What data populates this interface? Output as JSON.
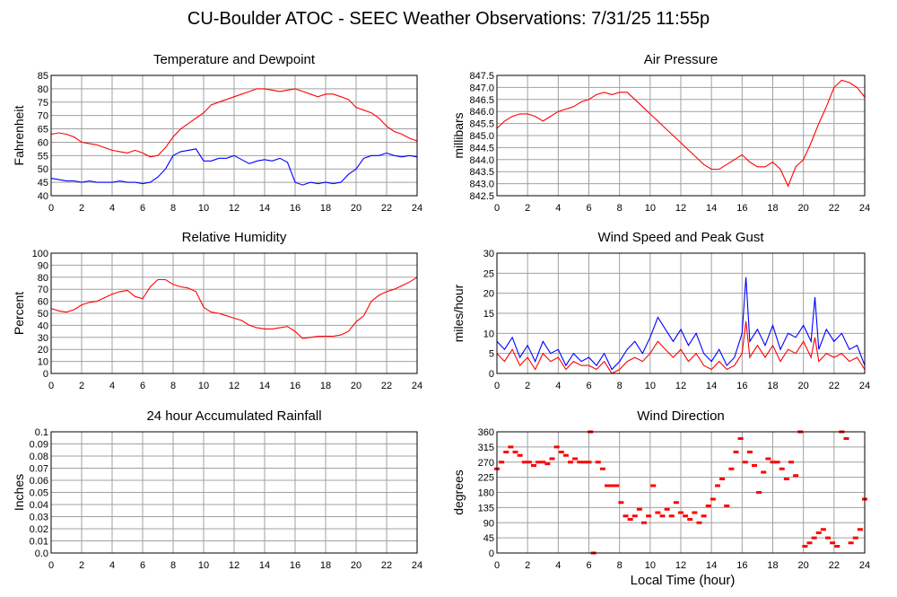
{
  "page_title": "CU-Boulder ATOC - SEEC Weather Observations: 7/31/25 11:55p",
  "footer_xlabel": "Local Time (hour)",
  "colors": {
    "red": "#ff0000",
    "blue": "#0000ff",
    "grid": "#a0a0a0",
    "frame": "#000000"
  },
  "chart_data": [
    {
      "type": "line",
      "title": "Temperature and Dewpoint",
      "ylabel": "Fahrenheit",
      "xlabel": "",
      "xlim": [
        0,
        24
      ],
      "ylim": [
        40,
        85
      ],
      "xticks": [
        0,
        2,
        4,
        6,
        8,
        10,
        12,
        14,
        16,
        18,
        20,
        22,
        24
      ],
      "yticks": [
        40,
        45,
        50,
        55,
        60,
        65,
        70,
        75,
        80,
        85
      ],
      "ytick_labels": [
        "40",
        "45",
        "50",
        "55",
        "60",
        "65",
        "70",
        "75",
        "80",
        "85"
      ],
      "grid": true,
      "series": [
        {
          "color": "#ff0000",
          "x": [
            0,
            0.5,
            1,
            1.5,
            2,
            2.5,
            3,
            3.5,
            4,
            4.5,
            5,
            5.5,
            6,
            6.5,
            7,
            7.5,
            8,
            8.5,
            9,
            9.5,
            10,
            10.5,
            11,
            11.5,
            12,
            12.5,
            13,
            13.5,
            14,
            14.5,
            15,
            15.5,
            16,
            16.5,
            17,
            17.5,
            18,
            18.5,
            19,
            19.5,
            20,
            20.5,
            21,
            21.5,
            22,
            22.5,
            23,
            23.5,
            24
          ],
          "y": [
            63,
            63.5,
            63,
            62,
            60,
            59.5,
            59,
            58,
            57,
            56.5,
            56,
            57,
            56,
            54.5,
            55,
            58,
            62,
            65,
            67,
            69,
            71,
            74,
            75,
            76,
            77,
            78,
            79,
            80,
            80,
            79.5,
            79,
            79.5,
            80,
            79,
            78,
            77,
            78,
            78,
            77,
            76,
            73,
            72,
            71,
            69,
            66,
            64,
            63,
            61.5,
            60.5
          ]
        },
        {
          "color": "#0000ff",
          "x": [
            0,
            0.5,
            1,
            1.5,
            2,
            2.5,
            3,
            3.5,
            4,
            4.5,
            5,
            5.5,
            6,
            6.5,
            7,
            7.5,
            8,
            8.5,
            9,
            9.5,
            10,
            10.5,
            11,
            11.5,
            12,
            12.5,
            13,
            13.5,
            14,
            14.5,
            15,
            15.5,
            16,
            16.5,
            17,
            17.5,
            18,
            18.5,
            19,
            19.5,
            20,
            20.5,
            21,
            21.5,
            22,
            22.5,
            23,
            23.5,
            24
          ],
          "y": [
            46.5,
            46,
            45.5,
            45.5,
            45,
            45.5,
            45,
            45,
            45,
            45.5,
            45,
            45,
            44.5,
            45,
            47,
            50,
            55,
            56.5,
            57,
            57.5,
            53,
            53,
            54,
            54,
            55,
            53.5,
            52,
            53,
            53.5,
            53,
            54,
            52.5,
            45,
            44,
            45,
            44.5,
            45,
            44.5,
            45,
            48,
            50,
            54,
            55,
            55,
            56,
            55,
            54.5,
            55,
            54.5
          ]
        }
      ]
    },
    {
      "type": "line",
      "title": "Air Pressure",
      "ylabel": "millibars",
      "xlabel": "",
      "xlim": [
        0,
        24
      ],
      "ylim": [
        842.5,
        847.5
      ],
      "xticks": [
        0,
        2,
        4,
        6,
        8,
        10,
        12,
        14,
        16,
        18,
        20,
        22,
        24
      ],
      "yticks": [
        842.5,
        843,
        843.5,
        844,
        844.5,
        845,
        845.5,
        846,
        846.5,
        847,
        847.5
      ],
      "ytick_labels": [
        "842.5",
        "843.0",
        "843.5",
        "844.0",
        "844.5",
        "845.0",
        "845.5",
        "846.0",
        "846.5",
        "847.0",
        "847.5"
      ],
      "grid": true,
      "series": [
        {
          "color": "#ff0000",
          "x": [
            0,
            0.5,
            1,
            1.5,
            2,
            2.5,
            3,
            3.5,
            4,
            4.5,
            5,
            5.5,
            6,
            6.5,
            7,
            7.5,
            8,
            8.5,
            9,
            9.5,
            10,
            10.5,
            11,
            11.5,
            12,
            12.5,
            13,
            13.5,
            14,
            14.5,
            15,
            15.5,
            16,
            16.5,
            17,
            17.5,
            18,
            18.5,
            19,
            19.5,
            20,
            20.5,
            21,
            21.5,
            22,
            22.5,
            23,
            23.5,
            24
          ],
          "y": [
            845.3,
            845.6,
            845.8,
            845.9,
            845.9,
            845.8,
            845.6,
            845.8,
            846,
            846.1,
            846.2,
            846.4,
            846.5,
            846.7,
            846.8,
            846.7,
            846.8,
            846.8,
            846.5,
            846.2,
            845.9,
            845.6,
            845.3,
            845,
            844.7,
            844.4,
            844.1,
            843.8,
            843.6,
            843.6,
            843.8,
            844,
            844.2,
            843.9,
            843.7,
            843.7,
            843.9,
            843.6,
            842.9,
            843.7,
            844,
            844.7,
            845.5,
            846.2,
            847,
            847.3,
            847.2,
            847,
            846.6
          ]
        }
      ]
    },
    {
      "type": "line",
      "title": "Relative Humidity",
      "ylabel": "Percent",
      "xlabel": "",
      "xlim": [
        0,
        24
      ],
      "ylim": [
        0,
        100
      ],
      "xticks": [
        0,
        2,
        4,
        6,
        8,
        10,
        12,
        14,
        16,
        18,
        20,
        22,
        24
      ],
      "yticks": [
        0,
        10,
        20,
        30,
        40,
        50,
        60,
        70,
        80,
        90,
        100
      ],
      "ytick_labels": [
        "0",
        "10",
        "20",
        "30",
        "40",
        "50",
        "60",
        "70",
        "80",
        "90",
        "100"
      ],
      "grid": true,
      "series": [
        {
          "color": "#ff0000",
          "x": [
            0,
            0.5,
            1,
            1.5,
            2,
            2.5,
            3,
            3.5,
            4,
            4.5,
            5,
            5.5,
            6,
            6.5,
            7,
            7.5,
            8,
            8.5,
            9,
            9.5,
            10,
            10.5,
            11,
            11.5,
            12,
            12.5,
            13,
            13.5,
            14,
            14.5,
            15,
            15.5,
            16,
            16.5,
            17,
            17.5,
            18,
            18.5,
            19,
            19.5,
            20,
            20.5,
            21,
            21.5,
            22,
            22.5,
            23,
            23.5,
            24
          ],
          "y": [
            54,
            52,
            51,
            53,
            57,
            59,
            60,
            63,
            66,
            68,
            69,
            64,
            62,
            72,
            78,
            78,
            74,
            72,
            71,
            68,
            55,
            51,
            50,
            48,
            46,
            44,
            40,
            38,
            37,
            37,
            38,
            39,
            35,
            29,
            30,
            31,
            31,
            31,
            32,
            35,
            43,
            48,
            60,
            65,
            68,
            70,
            73,
            76,
            80
          ]
        }
      ]
    },
    {
      "type": "line",
      "title": "Wind Speed and Peak Gust",
      "ylabel": "miles/hour",
      "xlabel": "",
      "xlim": [
        0,
        24
      ],
      "ylim": [
        0,
        30
      ],
      "xticks": [
        0,
        2,
        4,
        6,
        8,
        10,
        12,
        14,
        16,
        18,
        20,
        22,
        24
      ],
      "yticks": [
        0,
        5,
        10,
        15,
        20,
        25,
        30
      ],
      "ytick_labels": [
        "0",
        "5",
        "10",
        "15",
        "20",
        "25",
        "30"
      ],
      "grid": true,
      "series": [
        {
          "color": "#0000ff",
          "x": [
            0,
            0.5,
            1,
            1.5,
            2,
            2.5,
            3,
            3.5,
            4,
            4.5,
            5,
            5.5,
            6,
            6.5,
            7,
            7.5,
            8,
            8.5,
            9,
            9.5,
            10,
            10.5,
            11,
            11.5,
            12,
            12.5,
            13,
            13.5,
            14,
            14.5,
            15,
            15.5,
            16,
            16.25,
            16.5,
            17,
            17.5,
            18,
            18.5,
            19,
            19.5,
            20,
            20.5,
            20.75,
            21,
            21.5,
            22,
            22.5,
            23,
            23.5,
            24
          ],
          "y": [
            8,
            6,
            9,
            4,
            7,
            3,
            8,
            5,
            6,
            2,
            5,
            3,
            4,
            2,
            5,
            1,
            3,
            6,
            8,
            5,
            9,
            14,
            11,
            8,
            11,
            7,
            10,
            5,
            3,
            6,
            2,
            4,
            10,
            24,
            8,
            11,
            7,
            12,
            6,
            10,
            9,
            12,
            8,
            19,
            6,
            11,
            8,
            10,
            6,
            7,
            2
          ]
        },
        {
          "color": "#ff0000",
          "x": [
            0,
            0.5,
            1,
            1.5,
            2,
            2.5,
            3,
            3.5,
            4,
            4.5,
            5,
            5.5,
            6,
            6.5,
            7,
            7.5,
            8,
            8.5,
            9,
            9.5,
            10,
            10.5,
            11,
            11.5,
            12,
            12.5,
            13,
            13.5,
            14,
            14.5,
            15,
            15.5,
            16,
            16.25,
            16.5,
            17,
            17.5,
            18,
            18.5,
            19,
            19.5,
            20,
            20.5,
            20.75,
            21,
            21.5,
            22,
            22.5,
            23,
            23.5,
            24
          ],
          "y": [
            5,
            3,
            6,
            2,
            4,
            1,
            5,
            3,
            4,
            1,
            3,
            2,
            2,
            1,
            3,
            0,
            1,
            3,
            4,
            3,
            5,
            8,
            6,
            4,
            6,
            3,
            5,
            2,
            1,
            3,
            1,
            2,
            5,
            13,
            4,
            7,
            4,
            7,
            3,
            6,
            5,
            8,
            4,
            9,
            3,
            5,
            4,
            5,
            3,
            4,
            1
          ]
        }
      ]
    },
    {
      "type": "line",
      "title": "24 hour Accumulated Rainfall",
      "ylabel": "Inches",
      "xlabel": "",
      "xlim": [
        0,
        24
      ],
      "ylim": [
        0,
        0.1
      ],
      "xticks": [
        0,
        2,
        4,
        6,
        8,
        10,
        12,
        14,
        16,
        18,
        20,
        22,
        24
      ],
      "yticks": [
        0,
        0.01,
        0.02,
        0.03,
        0.04,
        0.05,
        0.06,
        0.07,
        0.08,
        0.09,
        0.1
      ],
      "ytick_labels": [
        "0.0",
        "0.01",
        "0.02",
        "0.03",
        "0.04",
        "0.05",
        "0.06",
        "0.07",
        "0.08",
        "0.09",
        "0.1"
      ],
      "grid": true,
      "series": [
        {
          "color": "#ff0000",
          "x": [
            0,
            24
          ],
          "y": [
            0,
            0
          ]
        }
      ]
    },
    {
      "type": "scatter",
      "title": "Wind Direction",
      "ylabel": "degrees",
      "xlabel": "Local Time (hour)",
      "xlim": [
        0,
        24
      ],
      "ylim": [
        0,
        360
      ],
      "xticks": [
        0,
        2,
        4,
        6,
        8,
        10,
        12,
        14,
        16,
        18,
        20,
        22,
        24
      ],
      "yticks": [
        0,
        45,
        90,
        135,
        180,
        225,
        270,
        315,
        360
      ],
      "ytick_labels": [
        "0",
        "45",
        "90",
        "135",
        "180",
        "225",
        "270",
        "315",
        "360"
      ],
      "grid": true,
      "series": [
        {
          "color": "#ff0000",
          "x": [
            0,
            0.3,
            0.6,
            0.9,
            1.2,
            1.5,
            1.8,
            2.1,
            2.4,
            2.7,
            3.0,
            3.3,
            3.6,
            3.9,
            4.2,
            4.5,
            4.8,
            5.1,
            5.4,
            5.7,
            6.0,
            6.1,
            6.3,
            6.6,
            6.9,
            7.2,
            7.5,
            7.8,
            8.1,
            8.4,
            8.7,
            9.0,
            9.3,
            9.6,
            9.9,
            10.2,
            10.5,
            10.8,
            11.1,
            11.4,
            11.7,
            12.0,
            12.3,
            12.6,
            12.9,
            13.2,
            13.5,
            13.8,
            14.1,
            14.4,
            14.7,
            15.0,
            15.3,
            15.6,
            15.9,
            16.2,
            16.5,
            16.8,
            17.1,
            17.4,
            17.7,
            18.0,
            18.3,
            18.6,
            18.9,
            19.2,
            19.5,
            19.8,
            20.1,
            20.4,
            20.7,
            21.0,
            21.3,
            21.6,
            21.9,
            22.2,
            22.5,
            22.8,
            23.1,
            23.4,
            23.7,
            24.0
          ],
          "y": [
            250,
            270,
            300,
            315,
            300,
            290,
            270,
            270,
            260,
            270,
            270,
            265,
            280,
            315,
            300,
            290,
            270,
            280,
            270,
            270,
            270,
            360,
            0,
            270,
            250,
            200,
            200,
            200,
            150,
            110,
            100,
            110,
            130,
            90,
            110,
            200,
            120,
            110,
            130,
            110,
            150,
            120,
            110,
            100,
            120,
            90,
            110,
            140,
            160,
            200,
            220,
            140,
            250,
            300,
            340,
            270,
            300,
            260,
            180,
            240,
            280,
            270,
            270,
            250,
            220,
            270,
            230,
            360,
            20,
            30,
            45,
            60,
            70,
            45,
            30,
            20,
            360,
            340,
            30,
            45,
            70,
            160
          ]
        }
      ]
    }
  ]
}
